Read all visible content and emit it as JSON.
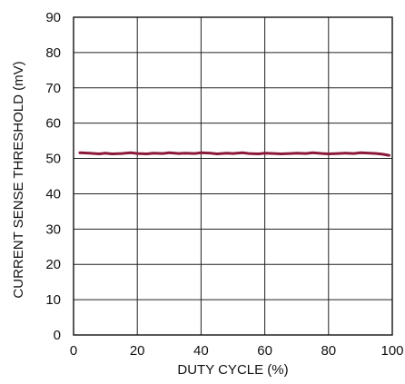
{
  "chart_data": {
    "type": "line",
    "title": "",
    "xlabel": "DUTY CYCLE (%)",
    "ylabel": "CURRENT SENSE THRESHOLD (mV)",
    "xlim": [
      0,
      100
    ],
    "ylim": [
      0,
      90
    ],
    "xticks": [
      "0",
      "20",
      "40",
      "60",
      "80",
      "100"
    ],
    "yticks": [
      "0",
      "10",
      "20",
      "30",
      "40",
      "50",
      "60",
      "70",
      "80",
      "90"
    ],
    "grid": true,
    "legend": "none",
    "series": [
      {
        "color": "#8b1a3a",
        "x": [
          2,
          5,
          8,
          10,
          12,
          15,
          18,
          20,
          23,
          25,
          28,
          30,
          33,
          35,
          38,
          40,
          43,
          45,
          48,
          50,
          53,
          55,
          58,
          60,
          63,
          65,
          68,
          70,
          73,
          75,
          78,
          80,
          83,
          85,
          88,
          90,
          93,
          95,
          97,
          99
        ],
        "y": [
          51.6,
          51.5,
          51.3,
          51.5,
          51.3,
          51.4,
          51.6,
          51.4,
          51.3,
          51.5,
          51.4,
          51.6,
          51.4,
          51.5,
          51.4,
          51.6,
          51.5,
          51.3,
          51.5,
          51.4,
          51.6,
          51.4,
          51.3,
          51.5,
          51.4,
          51.3,
          51.4,
          51.5,
          51.4,
          51.6,
          51.4,
          51.3,
          51.4,
          51.5,
          51.4,
          51.6,
          51.5,
          51.4,
          51.2,
          50.9
        ]
      }
    ]
  }
}
